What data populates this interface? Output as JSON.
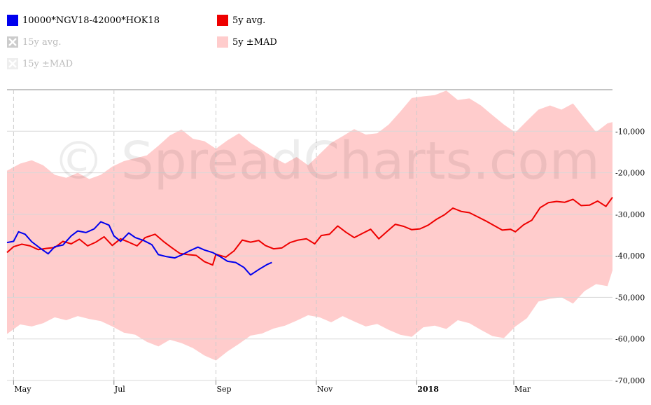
{
  "legend": {
    "items": [
      {
        "label": "10000*NGV18-42000*HOK18",
        "color": "#0000ee",
        "enabled": true
      },
      {
        "label": "5y avg.",
        "color": "#ee0000",
        "enabled": true
      },
      {
        "label": "15y avg.",
        "color": "#cccccc",
        "enabled": false
      },
      {
        "label": "5y ±MAD",
        "color": "#ffcccc",
        "enabled": true
      },
      {
        "label": "15y ±MAD",
        "color": "#eeeeee",
        "enabled": false
      }
    ]
  },
  "watermark": "© SpreadCharts.com",
  "chart_data": {
    "type": "line",
    "x_range": [
      "2017-04-27",
      "2018-04-30"
    ],
    "ylim": [
      -70000,
      0
    ],
    "y_ticks": [
      {
        "value": -10000,
        "label": "-10,000"
      },
      {
        "value": -20000,
        "label": "-20,000"
      },
      {
        "value": -30000,
        "label": "-30,000"
      },
      {
        "value": -40000,
        "label": "-40,000"
      },
      {
        "value": -50000,
        "label": "-50,000"
      },
      {
        "value": -60000,
        "label": "-60,000"
      },
      {
        "value": -70000,
        "label": "-70,000"
      }
    ],
    "x_ticks": [
      {
        "date": "2017-05-01",
        "label": "May",
        "bold": false
      },
      {
        "date": "2017-07-01",
        "label": "Jul",
        "bold": false
      },
      {
        "date": "2017-09-01",
        "label": "Sep",
        "bold": false
      },
      {
        "date": "2017-11-01",
        "label": "Nov",
        "bold": false
      },
      {
        "date": "2018-01-01",
        "label": "2018",
        "bold": true
      },
      {
        "date": "2018-03-01",
        "label": "Mar",
        "bold": false
      }
    ],
    "grid": true,
    "legend_position": "top",
    "series": [
      {
        "name": "10000*NGV18-42000*HOK18",
        "color": "#0000ee",
        "kind": "line",
        "points": [
          [
            "2017-04-27",
            -36800
          ],
          [
            "2017-05-01",
            -36500
          ],
          [
            "2017-05-04",
            -34200
          ],
          [
            "2017-05-08",
            -34800
          ],
          [
            "2017-05-12",
            -36600
          ],
          [
            "2017-05-17",
            -38100
          ],
          [
            "2017-05-22",
            -39500
          ],
          [
            "2017-05-26",
            -37800
          ],
          [
            "2017-05-31",
            -37400
          ],
          [
            "2017-06-05",
            -35200
          ],
          [
            "2017-06-09",
            -34000
          ],
          [
            "2017-06-14",
            -34400
          ],
          [
            "2017-06-19",
            -33500
          ],
          [
            "2017-06-23",
            -31800
          ],
          [
            "2017-06-28",
            -32600
          ],
          [
            "2017-07-01",
            -35200
          ],
          [
            "2017-07-05",
            -36500
          ],
          [
            "2017-07-10",
            -34500
          ],
          [
            "2017-07-14",
            -35600
          ],
          [
            "2017-07-19",
            -36300
          ],
          [
            "2017-07-24",
            -37300
          ],
          [
            "2017-07-28",
            -39700
          ],
          [
            "2017-08-02",
            -40200
          ],
          [
            "2017-08-07",
            -40500
          ],
          [
            "2017-08-11",
            -39800
          ],
          [
            "2017-08-16",
            -38800
          ],
          [
            "2017-08-21",
            -37900
          ],
          [
            "2017-08-25",
            -38600
          ],
          [
            "2017-08-30",
            -39200
          ],
          [
            "2017-09-04",
            -40300
          ],
          [
            "2017-09-08",
            -41300
          ],
          [
            "2017-09-13",
            -41600
          ],
          [
            "2017-09-18",
            -42800
          ],
          [
            "2017-09-22",
            -44600
          ],
          [
            "2017-09-27",
            -43300
          ],
          [
            "2017-10-02",
            -42100
          ],
          [
            "2017-10-05",
            -41600
          ]
        ]
      },
      {
        "name": "5y avg.",
        "color": "#ee0000",
        "kind": "line",
        "points": [
          [
            "2017-04-27",
            -39200
          ],
          [
            "2017-05-01",
            -37800
          ],
          [
            "2017-05-06",
            -37200
          ],
          [
            "2017-05-11",
            -37600
          ],
          [
            "2017-05-16",
            -38500
          ],
          [
            "2017-05-21",
            -38200
          ],
          [
            "2017-05-26",
            -38000
          ],
          [
            "2017-05-31",
            -36500
          ],
          [
            "2017-06-05",
            -37100
          ],
          [
            "2017-06-10",
            -36000
          ],
          [
            "2017-06-15",
            -37600
          ],
          [
            "2017-06-20",
            -36700
          ],
          [
            "2017-06-25",
            -35400
          ],
          [
            "2017-06-30",
            -37500
          ],
          [
            "2017-07-05",
            -35900
          ],
          [
            "2017-07-10",
            -36700
          ],
          [
            "2017-07-15",
            -37600
          ],
          [
            "2017-07-20",
            -35600
          ],
          [
            "2017-07-26",
            -34800
          ],
          [
            "2017-07-31",
            -36500
          ],
          [
            "2017-08-05",
            -38000
          ],
          [
            "2017-08-10",
            -39400
          ],
          [
            "2017-08-15",
            -39700
          ],
          [
            "2017-08-20",
            -39900
          ],
          [
            "2017-08-25",
            -41400
          ],
          [
            "2017-08-30",
            -42200
          ],
          [
            "2017-09-01",
            -39600
          ],
          [
            "2017-09-07",
            -40300
          ],
          [
            "2017-09-12",
            -38800
          ],
          [
            "2017-09-17",
            -36200
          ],
          [
            "2017-09-22",
            -36700
          ],
          [
            "2017-09-27",
            -36300
          ],
          [
            "2017-10-01",
            -37500
          ],
          [
            "2017-10-06",
            -38300
          ],
          [
            "2017-10-11",
            -38100
          ],
          [
            "2017-10-16",
            -36800
          ],
          [
            "2017-10-21",
            -36200
          ],
          [
            "2017-10-26",
            -35900
          ],
          [
            "2017-10-31",
            -37100
          ],
          [
            "2017-11-04",
            -35100
          ],
          [
            "2017-11-09",
            -34800
          ],
          [
            "2017-11-14",
            -32800
          ],
          [
            "2017-11-19",
            -34300
          ],
          [
            "2017-11-24",
            -35600
          ],
          [
            "2017-11-29",
            -34600
          ],
          [
            "2017-12-04",
            -33600
          ],
          [
            "2017-12-09",
            -35900
          ],
          [
            "2017-12-14",
            -34100
          ],
          [
            "2017-12-19",
            -32400
          ],
          [
            "2017-12-24",
            -32900
          ],
          [
            "2017-12-29",
            -33700
          ],
          [
            "2018-01-03",
            -33500
          ],
          [
            "2018-01-08",
            -32600
          ],
          [
            "2018-01-13",
            -31200
          ],
          [
            "2018-01-18",
            -30100
          ],
          [
            "2018-01-23",
            -28500
          ],
          [
            "2018-01-28",
            -29300
          ],
          [
            "2018-02-02",
            -29600
          ],
          [
            "2018-02-07",
            -30600
          ],
          [
            "2018-02-12",
            -31600
          ],
          [
            "2018-02-17",
            -32700
          ],
          [
            "2018-02-22",
            -33800
          ],
          [
            "2018-02-27",
            -33600
          ],
          [
            "2018-03-02",
            -34200
          ],
          [
            "2018-03-07",
            -32500
          ],
          [
            "2018-03-12",
            -31400
          ],
          [
            "2018-03-17",
            -28400
          ],
          [
            "2018-03-22",
            -27200
          ],
          [
            "2018-03-27",
            -26900
          ],
          [
            "2018-04-01",
            -27100
          ],
          [
            "2018-04-06",
            -26400
          ],
          [
            "2018-04-11",
            -27900
          ],
          [
            "2018-04-16",
            -27800
          ],
          [
            "2018-04-21",
            -26800
          ],
          [
            "2018-04-26",
            -28100
          ],
          [
            "2018-04-30",
            -25900
          ]
        ]
      },
      {
        "name": "5y ±MAD",
        "color": "#ffcccc",
        "kind": "band",
        "upper": [
          [
            "2017-04-27",
            -19500
          ],
          [
            "2017-05-05",
            -17800
          ],
          [
            "2017-05-12",
            -17000
          ],
          [
            "2017-05-19",
            -18200
          ],
          [
            "2017-05-26",
            -20500
          ],
          [
            "2017-06-02",
            -21200
          ],
          [
            "2017-06-09",
            -20000
          ],
          [
            "2017-06-16",
            -21500
          ],
          [
            "2017-06-23",
            -20500
          ],
          [
            "2017-06-30",
            -18500
          ],
          [
            "2017-07-07",
            -17200
          ],
          [
            "2017-07-14",
            -16500
          ],
          [
            "2017-07-21",
            -15800
          ],
          [
            "2017-07-28",
            -13500
          ],
          [
            "2017-08-04",
            -11000
          ],
          [
            "2017-08-11",
            -9600
          ],
          [
            "2017-08-18",
            -11800
          ],
          [
            "2017-08-25",
            -12400
          ],
          [
            "2017-09-01",
            -14200
          ],
          [
            "2017-09-08",
            -12200
          ],
          [
            "2017-09-15",
            -10500
          ],
          [
            "2017-09-22",
            -12800
          ],
          [
            "2017-09-29",
            -14500
          ],
          [
            "2017-10-06",
            -16300
          ],
          [
            "2017-10-13",
            -17800
          ],
          [
            "2017-10-20",
            -16200
          ],
          [
            "2017-10-27",
            -18200
          ],
          [
            "2017-11-03",
            -15500
          ],
          [
            "2017-11-10",
            -12800
          ],
          [
            "2017-11-17",
            -11200
          ],
          [
            "2017-11-24",
            -9500
          ],
          [
            "2017-12-01",
            -10800
          ],
          [
            "2017-12-08",
            -10500
          ],
          [
            "2017-12-15",
            -8400
          ],
          [
            "2017-12-22",
            -5300
          ],
          [
            "2017-12-29",
            -2000
          ],
          [
            "2018-01-05",
            -1600
          ],
          [
            "2018-01-12",
            -1300
          ],
          [
            "2018-01-19",
            -200
          ],
          [
            "2018-01-26",
            -2500
          ],
          [
            "2018-02-02",
            -2100
          ],
          [
            "2018-02-09",
            -3800
          ],
          [
            "2018-02-16",
            -6100
          ],
          [
            "2018-02-23",
            -8400
          ],
          [
            "2018-03-02",
            -10300
          ],
          [
            "2018-03-09",
            -7500
          ],
          [
            "2018-03-16",
            -4800
          ],
          [
            "2018-03-23",
            -3800
          ],
          [
            "2018-03-30",
            -4800
          ],
          [
            "2018-04-06",
            -3300
          ],
          [
            "2018-04-13",
            -6800
          ],
          [
            "2018-04-20",
            -10200
          ],
          [
            "2018-04-27",
            -8100
          ],
          [
            "2018-04-30",
            -7800
          ]
        ],
        "lower": [
          [
            "2017-04-27",
            -58800
          ],
          [
            "2017-05-05",
            -56500
          ],
          [
            "2017-05-12",
            -57000
          ],
          [
            "2017-05-19",
            -56200
          ],
          [
            "2017-05-26",
            -54800
          ],
          [
            "2017-06-02",
            -55500
          ],
          [
            "2017-06-09",
            -54500
          ],
          [
            "2017-06-16",
            -55200
          ],
          [
            "2017-06-23",
            -55700
          ],
          [
            "2017-06-30",
            -57000
          ],
          [
            "2017-07-07",
            -58500
          ],
          [
            "2017-07-14",
            -59000
          ],
          [
            "2017-07-21",
            -60700
          ],
          [
            "2017-07-28",
            -61800
          ],
          [
            "2017-08-04",
            -60200
          ],
          [
            "2017-08-11",
            -61000
          ],
          [
            "2017-08-18",
            -62200
          ],
          [
            "2017-08-25",
            -64000
          ],
          [
            "2017-09-01",
            -65200
          ],
          [
            "2017-09-08",
            -63000
          ],
          [
            "2017-09-15",
            -61200
          ],
          [
            "2017-09-22",
            -59200
          ],
          [
            "2017-09-29",
            -58700
          ],
          [
            "2017-10-06",
            -57500
          ],
          [
            "2017-10-13",
            -56800
          ],
          [
            "2017-10-20",
            -55600
          ],
          [
            "2017-10-27",
            -54300
          ],
          [
            "2017-11-03",
            -54800
          ],
          [
            "2017-11-10",
            -56000
          ],
          [
            "2017-11-17",
            -54500
          ],
          [
            "2017-11-24",
            -55800
          ],
          [
            "2017-12-01",
            -57000
          ],
          [
            "2017-12-08",
            -56400
          ],
          [
            "2017-12-15",
            -57800
          ],
          [
            "2017-12-22",
            -59000
          ],
          [
            "2017-12-29",
            -59500
          ],
          [
            "2018-01-05",
            -57200
          ],
          [
            "2018-01-12",
            -56800
          ],
          [
            "2018-01-19",
            -57600
          ],
          [
            "2018-01-26",
            -55500
          ],
          [
            "2018-02-02",
            -56200
          ],
          [
            "2018-02-09",
            -57800
          ],
          [
            "2018-02-16",
            -59300
          ],
          [
            "2018-02-23",
            -59800
          ],
          [
            "2018-03-02",
            -57000
          ],
          [
            "2018-03-09",
            -55000
          ],
          [
            "2018-03-16",
            -51000
          ],
          [
            "2018-03-23",
            -50300
          ],
          [
            "2018-03-30",
            -50000
          ],
          [
            "2018-04-06",
            -51500
          ],
          [
            "2018-04-13",
            -48500
          ],
          [
            "2018-04-20",
            -46800
          ],
          [
            "2018-04-27",
            -47300
          ],
          [
            "2018-04-30",
            -43500
          ]
        ]
      }
    ]
  }
}
